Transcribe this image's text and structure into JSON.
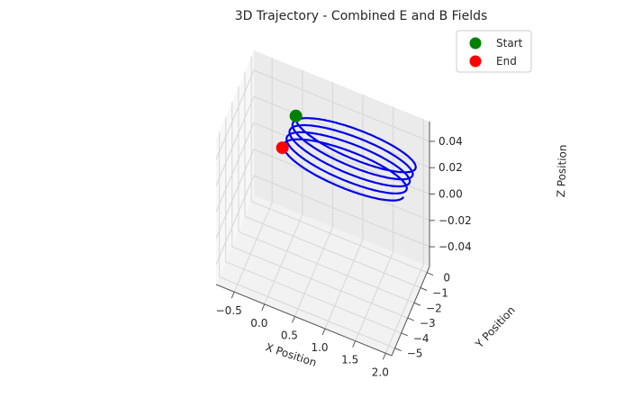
{
  "chart_data": {
    "type": "line",
    "title": "3D Trajectory - Combined E and B Fields",
    "xlabel": "X Position",
    "ylabel": "Y Position",
    "zlabel": "Z Position",
    "xlim": [
      -0.8,
      2.1
    ],
    "ylim": [
      -5.5,
      0.4
    ],
    "zlim": [
      -0.055,
      0.055
    ],
    "xticks": [
      "−0.5",
      "0.0",
      "0.5",
      "1.0",
      "1.5",
      "2.0"
    ],
    "yticks": [
      "−5",
      "−4",
      "−3",
      "−2",
      "−1",
      "0"
    ],
    "zticks": [
      "0.04",
      "0.02",
      "0.00",
      "−0.02",
      "−0.04"
    ],
    "grid": true,
    "legend_position": "top-right",
    "series": [
      {
        "kind": "trajectory",
        "color": "#0000ee",
        "description_values": {
          "x_center": 0.75,
          "x_amplitude": 1.0,
          "y_amplitude": 1.0,
          "y_drift_total": -2.1,
          "loops": 4.5,
          "z": 0.0
        }
      },
      {
        "name": "Start",
        "kind": "marker",
        "color": "#008000",
        "x": -0.25,
        "y": 0.0,
        "z": 0.0
      },
      {
        "name": "End",
        "kind": "marker",
        "color": "#ff0000",
        "x": -0.25,
        "y": -2.1,
        "z": 0.0
      }
    ]
  }
}
